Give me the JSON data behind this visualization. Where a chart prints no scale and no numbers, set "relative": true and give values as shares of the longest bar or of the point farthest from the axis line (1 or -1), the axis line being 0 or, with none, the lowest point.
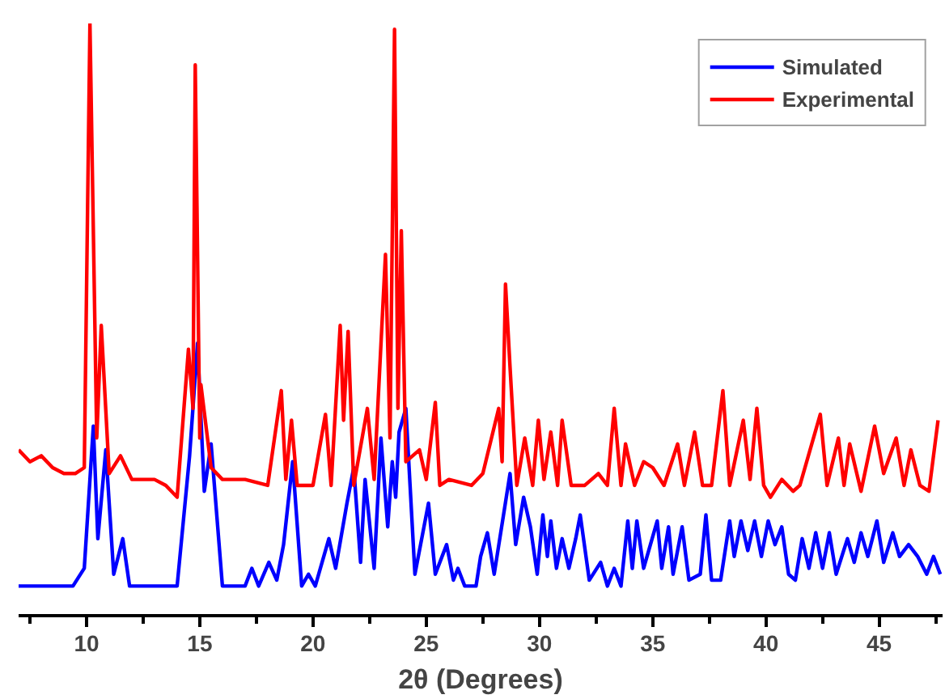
{
  "chart_data": {
    "type": "line",
    "relative": true,
    "xlabel": "2θ (Degrees)",
    "xlim": [
      7,
      47.8
    ],
    "xticks": [
      {
        "value": 7.5,
        "label": null
      },
      10,
      {
        "value": 12.5,
        "label": null
      },
      15,
      {
        "value": 17.5,
        "label": null
      },
      20,
      {
        "value": 22.5,
        "label": null
      },
      25,
      {
        "value": 27.5,
        "label": null
      },
      30,
      {
        "value": 32.5,
        "label": null
      },
      35,
      {
        "value": 37.5,
        "label": null
      },
      40,
      {
        "value": 42.5,
        "label": null
      },
      45,
      {
        "value": 47.5,
        "label": null
      }
    ],
    "grid": false,
    "legend": "top right",
    "marker": "none",
    "line_style": "solid",
    "series": [
      {
        "name": "Simulated",
        "color": "#0000ff",
        "x": [
          7,
          9.4,
          9.9,
          10.3,
          10.5,
          10.85,
          11.2,
          11.6,
          11.9,
          14.0,
          14.55,
          14.9,
          15.2,
          15.5,
          16.0,
          17.0,
          17.3,
          17.6,
          18.05,
          18.4,
          18.7,
          19.1,
          19.5,
          19.8,
          20.1,
          20.7,
          21.0,
          21.5,
          21.8,
          22.1,
          22.3,
          22.7,
          23.0,
          23.3,
          23.5,
          23.65,
          23.8,
          24.1,
          24.5,
          25.1,
          25.4,
          25.9,
          26.2,
          26.4,
          26.7,
          27.2,
          27.4,
          27.7,
          28.0,
          28.7,
          28.95,
          29.3,
          29.6,
          29.9,
          30.15,
          30.35,
          30.5,
          30.75,
          31.0,
          31.3,
          31.6,
          31.8,
          32.2,
          32.7,
          33.0,
          33.3,
          33.6,
          33.9,
          34.1,
          34.3,
          34.6,
          35.2,
          35.4,
          35.7,
          35.9,
          36.3,
          36.6,
          37.1,
          37.35,
          37.6,
          38.0,
          38.4,
          38.6,
          38.9,
          39.2,
          39.5,
          39.8,
          40.1,
          40.4,
          40.7,
          41.0,
          41.3,
          41.6,
          41.9,
          42.2,
          42.5,
          42.8,
          43.1,
          43.6,
          43.9,
          44.2,
          44.5,
          44.9,
          45.2,
          45.6,
          45.9,
          46.3,
          46.7,
          47.1,
          47.4,
          47.7
        ],
        "values": [
          0.05,
          0.05,
          0.08,
          0.32,
          0.13,
          0.28,
          0.07,
          0.13,
          0.05,
          0.05,
          0.27,
          0.46,
          0.21,
          0.29,
          0.05,
          0.05,
          0.08,
          0.05,
          0.09,
          0.06,
          0.12,
          0.26,
          0.05,
          0.07,
          0.05,
          0.13,
          0.08,
          0.19,
          0.25,
          0.09,
          0.23,
          0.08,
          0.3,
          0.15,
          0.26,
          0.2,
          0.31,
          0.35,
          0.07,
          0.19,
          0.07,
          0.12,
          0.06,
          0.08,
          0.05,
          0.05,
          0.1,
          0.14,
          0.07,
          0.24,
          0.12,
          0.2,
          0.15,
          0.07,
          0.17,
          0.1,
          0.16,
          0.08,
          0.13,
          0.08,
          0.13,
          0.17,
          0.06,
          0.09,
          0.05,
          0.08,
          0.05,
          0.16,
          0.08,
          0.16,
          0.08,
          0.16,
          0.08,
          0.15,
          0.07,
          0.15,
          0.06,
          0.07,
          0.17,
          0.06,
          0.06,
          0.16,
          0.1,
          0.16,
          0.11,
          0.16,
          0.1,
          0.16,
          0.12,
          0.15,
          0.07,
          0.06,
          0.13,
          0.08,
          0.14,
          0.08,
          0.14,
          0.07,
          0.13,
          0.09,
          0.14,
          0.1,
          0.16,
          0.09,
          0.14,
          0.1,
          0.12,
          0.1,
          0.07,
          0.1,
          0.07
        ]
      },
      {
        "name": "Experimental",
        "color": "#ff0000",
        "x": [
          7,
          7.5,
          8.0,
          8.5,
          9.0,
          9.5,
          9.9,
          10.15,
          10.45,
          10.65,
          11.0,
          11.5,
          12.0,
          13.0,
          13.5,
          14.0,
          14.5,
          14.7,
          14.8,
          15.0,
          15.05,
          15.5,
          16.0,
          17.0,
          18.0,
          18.6,
          18.8,
          19.05,
          19.3,
          20.0,
          20.55,
          20.8,
          21.2,
          21.35,
          21.55,
          21.8,
          22.4,
          22.7,
          23.2,
          23.4,
          23.6,
          23.75,
          23.9,
          24.1,
          24.7,
          25.0,
          25.4,
          25.6,
          26.0,
          27.0,
          27.5,
          28.2,
          28.35,
          28.5,
          28.7,
          29.0,
          29.35,
          29.7,
          29.95,
          30.2,
          30.5,
          30.8,
          31.0,
          31.4,
          32.0,
          32.6,
          33.0,
          33.3,
          33.6,
          33.8,
          34.2,
          34.6,
          35.0,
          35.5,
          36.1,
          36.4,
          36.85,
          37.2,
          37.6,
          38.1,
          38.4,
          39.0,
          39.3,
          39.6,
          39.9,
          40.2,
          40.7,
          41.2,
          41.5,
          42.4,
          42.7,
          43.2,
          43.45,
          43.7,
          44.2,
          44.8,
          45.2,
          45.75,
          46.1,
          46.4,
          46.8,
          47.2,
          47.6
        ],
        "values": [
          0.28,
          0.26,
          0.27,
          0.25,
          0.24,
          0.24,
          0.25,
          1.0,
          0.3,
          0.49,
          0.24,
          0.27,
          0.23,
          0.23,
          0.22,
          0.2,
          0.45,
          0.35,
          0.93,
          0.3,
          0.39,
          0.25,
          0.23,
          0.23,
          0.22,
          0.38,
          0.23,
          0.33,
          0.22,
          0.22,
          0.34,
          0.22,
          0.49,
          0.33,
          0.48,
          0.22,
          0.35,
          0.23,
          0.61,
          0.3,
          0.99,
          0.35,
          0.65,
          0.26,
          0.28,
          0.23,
          0.36,
          0.22,
          0.23,
          0.22,
          0.24,
          0.35,
          0.26,
          0.56,
          0.42,
          0.22,
          0.3,
          0.22,
          0.33,
          0.23,
          0.31,
          0.22,
          0.33,
          0.22,
          0.22,
          0.24,
          0.22,
          0.35,
          0.22,
          0.29,
          0.22,
          0.26,
          0.25,
          0.22,
          0.29,
          0.22,
          0.31,
          0.22,
          0.22,
          0.38,
          0.22,
          0.33,
          0.23,
          0.35,
          0.22,
          0.2,
          0.23,
          0.21,
          0.22,
          0.34,
          0.22,
          0.3,
          0.22,
          0.29,
          0.21,
          0.32,
          0.24,
          0.3,
          0.22,
          0.28,
          0.22,
          0.21,
          0.33
        ]
      }
    ]
  }
}
